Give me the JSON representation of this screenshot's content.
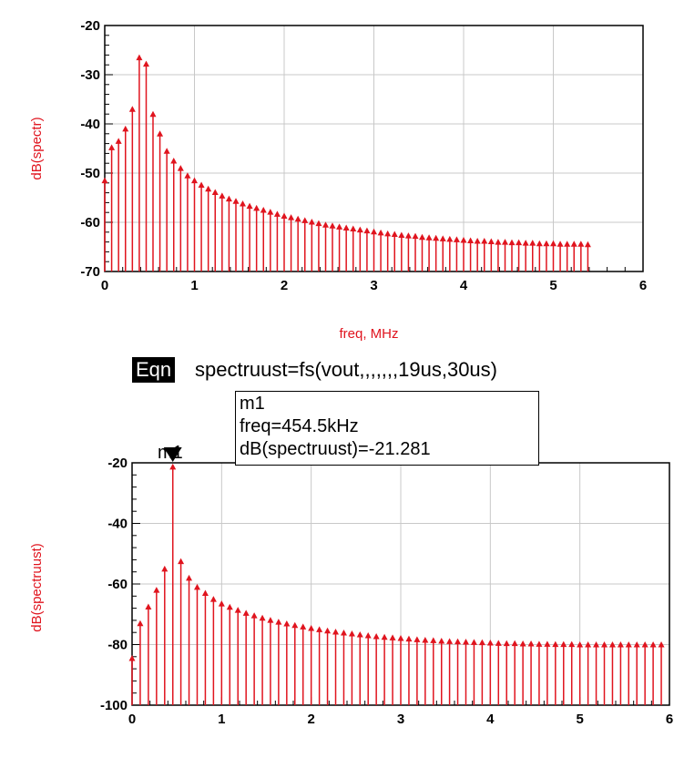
{
  "chart_data": [
    {
      "type": "stem",
      "xlabel": "freq, MHz",
      "ylabel": "dB(spectr)",
      "xlim": [
        0,
        6
      ],
      "ylim": [
        -70,
        -20
      ],
      "xticks": [
        "0",
        "1",
        "2",
        "3",
        "4",
        "5",
        "6"
      ],
      "yticks": [
        "-20",
        "-30",
        "-40",
        "-50",
        "-60",
        "-70"
      ],
      "grid": true,
      "series": [
        {
          "x": [
            0,
            0.077,
            0.154,
            0.231,
            0.308,
            0.385,
            0.462,
            0.538,
            0.615,
            0.692,
            0.769,
            0.846,
            0.923,
            1.0,
            1.077,
            1.154,
            1.231,
            1.308,
            1.385,
            1.462,
            1.538,
            1.615,
            1.692,
            1.769,
            1.846,
            1.923,
            2.0,
            2.077,
            2.154,
            2.231,
            2.308,
            2.385,
            2.462,
            2.538,
            2.615,
            2.692,
            2.769,
            2.846,
            2.923,
            3.0,
            3.077,
            3.154,
            3.231,
            3.308,
            3.385,
            3.462,
            3.538,
            3.615,
            3.692,
            3.769,
            3.846,
            3.923,
            4.0,
            4.077,
            4.154,
            4.231,
            4.308,
            4.385,
            4.462,
            4.538,
            4.615,
            4.692,
            4.769,
            4.846,
            4.923,
            5.0,
            5.077,
            5.154,
            5.231,
            5.308,
            5.385
          ],
          "values": [
            -51.5,
            -44.8,
            -43.5,
            -41,
            -37,
            -26.5,
            -27.8,
            -38,
            -42,
            -45.5,
            -47.5,
            -49,
            -50.5,
            -51.5,
            -52.4,
            -53.2,
            -53.9,
            -54.6,
            -55.2,
            -55.7,
            -56.2,
            -56.7,
            -57.1,
            -57.5,
            -57.9,
            -58.3,
            -58.7,
            -59,
            -59.3,
            -59.6,
            -59.9,
            -60.2,
            -60.5,
            -60.7,
            -60.9,
            -61.1,
            -61.3,
            -61.5,
            -61.7,
            -61.9,
            -62.1,
            -62.3,
            -62.4,
            -62.6,
            -62.7,
            -62.8,
            -63,
            -63.1,
            -63.2,
            -63.3,
            -63.4,
            -63.5,
            -63.6,
            -63.7,
            -63.8,
            -63.8,
            -63.9,
            -64,
            -64,
            -64.1,
            -64.1,
            -64.2,
            -64.2,
            -64.3,
            -64.3,
            -64.3,
            -64.4,
            -64.4,
            -64.4,
            -64.4,
            -64.5
          ]
        }
      ]
    },
    {
      "type": "stem",
      "xlabel": "",
      "ylabel": "dB(spectruust)",
      "xlim": [
        0,
        6
      ],
      "ylim": [
        -100,
        -20
      ],
      "xticks": [
        "0",
        "1",
        "2",
        "3",
        "4",
        "5",
        "6"
      ],
      "yticks": [
        "-20",
        "-40",
        "-60",
        "-80",
        "-100"
      ],
      "grid": true,
      "series": [
        {
          "x": [
            0,
            0.091,
            0.182,
            0.273,
            0.364,
            0.455,
            0.545,
            0.636,
            0.727,
            0.818,
            0.909,
            1.0,
            1.091,
            1.182,
            1.273,
            1.364,
            1.455,
            1.545,
            1.636,
            1.727,
            1.818,
            1.909,
            2.0,
            2.091,
            2.182,
            2.273,
            2.364,
            2.455,
            2.545,
            2.636,
            2.727,
            2.818,
            2.909,
            3.0,
            3.091,
            3.182,
            3.273,
            3.364,
            3.455,
            3.545,
            3.636,
            3.727,
            3.818,
            3.909,
            4.0,
            4.091,
            4.182,
            4.273,
            4.364,
            4.455,
            4.545,
            4.636,
            4.727,
            4.818,
            4.909,
            5.0,
            5.091,
            5.182,
            5.273,
            5.364,
            5.455,
            5.545,
            5.636,
            5.727,
            5.818,
            5.909
          ],
          "values": [
            -84.5,
            -73,
            -67.5,
            -62,
            -55,
            -21.3,
            -52.5,
            -58,
            -61,
            -63,
            -65,
            -66.5,
            -67.6,
            -68.6,
            -69.6,
            -70.4,
            -71.2,
            -71.9,
            -72.5,
            -73.1,
            -73.6,
            -74.1,
            -74.6,
            -75,
            -75.4,
            -75.8,
            -76.1,
            -76.4,
            -76.7,
            -77,
            -77.3,
            -77.5,
            -77.7,
            -77.9,
            -78.1,
            -78.3,
            -78.5,
            -78.6,
            -78.8,
            -78.9,
            -79,
            -79.1,
            -79.2,
            -79.3,
            -79.4,
            -79.5,
            -79.6,
            -79.6,
            -79.7,
            -79.7,
            -79.8,
            -79.8,
            -79.9,
            -79.9,
            -79.9,
            -80,
            -80,
            -80,
            -80,
            -80,
            -80,
            -80,
            -80,
            -80,
            -80,
            -80
          ]
        }
      ]
    }
  ],
  "equation": {
    "badge": "Eqn",
    "text": "spectruust=fs(vout,,,,,,,19us,30us)"
  },
  "marker": {
    "name": "m1",
    "line1": "m1",
    "line2": "freq=454.5kHz",
    "line3": "dB(spectruust)=-21.281",
    "x": 0.4545,
    "y": -21.281
  },
  "colors": {
    "stem": "#e0141e",
    "grid": "#c8c8c8",
    "frame": "#000000"
  }
}
